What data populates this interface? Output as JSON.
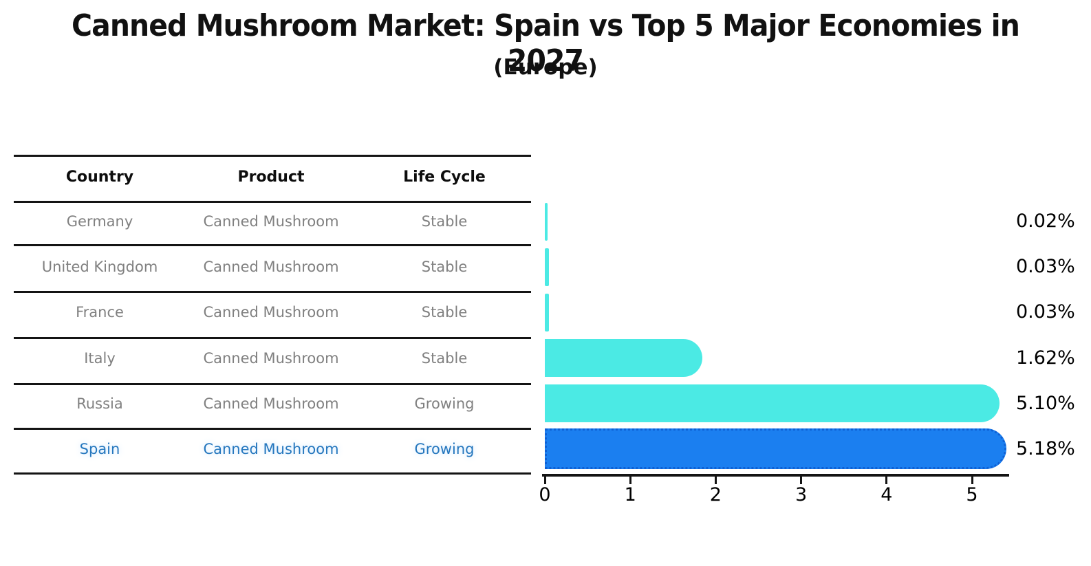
{
  "title": "Canned Mushroom Market: Spain vs Top 5 Major Economies in 2027",
  "subtitle": "(Europe)",
  "table": {
    "headers": [
      "Country",
      "Product",
      "Life Cycle"
    ],
    "rows": [
      {
        "country": "Germany",
        "product": "Canned Mushroom",
        "life_cycle": "Stable",
        "highlighted": false
      },
      {
        "country": "United Kingdom",
        "product": "Canned Mushroom",
        "life_cycle": "Stable",
        "highlighted": false
      },
      {
        "country": "France",
        "product": "Canned Mushroom",
        "life_cycle": "Stable",
        "highlighted": false
      },
      {
        "country": "Italy",
        "product": "Canned Mushroom",
        "life_cycle": "Stable",
        "highlighted": false
      },
      {
        "country": "Russia",
        "product": "Canned Mushroom",
        "life_cycle": "Growing",
        "highlighted": false
      },
      {
        "country": "Spain",
        "product": "Canned Mushroom",
        "life_cycle": "Growing",
        "highlighted": true
      }
    ]
  },
  "chart_data": {
    "type": "bar",
    "orientation": "horizontal",
    "categories": [
      "Germany",
      "United Kingdom",
      "France",
      "Italy",
      "Russia",
      "Spain"
    ],
    "values": [
      0.02,
      0.03,
      0.03,
      1.62,
      5.1,
      5.18
    ],
    "value_labels": [
      "0.02%",
      "0.03%",
      "0.03%",
      "1.62%",
      "5.10%",
      "5.18%"
    ],
    "x_ticks": [
      "0",
      "1",
      "2",
      "3",
      "4",
      "5"
    ],
    "xlim": [
      0,
      5.45
    ],
    "grid": false,
    "legend": "none",
    "highlight_index": 5,
    "bar_color": "#4beae4",
    "highlight_bar_color": "#1b7ff0",
    "highlight_bar_border": "#0e60d4"
  },
  "colors": {
    "background": "#ffffff",
    "text_primary": "#111111",
    "text_muted": "#808080",
    "highlight_text": "#2577be",
    "line": "#141414"
  }
}
